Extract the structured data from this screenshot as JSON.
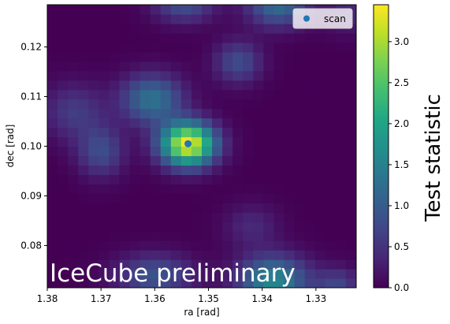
{
  "chart_data": {
    "type": "heatmap",
    "title": "",
    "xlabel": "ra [rad]",
    "ylabel": "dec [rad]",
    "xlim": [
      1.38,
      1.3225
    ],
    "ylim": [
      0.0715,
      0.1285
    ],
    "x_ticks": [
      1.38,
      1.37,
      1.36,
      1.35,
      1.34,
      1.33
    ],
    "x_tick_labels": [
      "1.38",
      "1.37",
      "1.36",
      "1.35",
      "1.34",
      "1.33"
    ],
    "y_ticks": [
      0.08,
      0.09,
      0.1,
      0.11,
      0.12
    ],
    "y_tick_labels": [
      "0.08",
      "0.09",
      "0.10",
      "0.11",
      "0.12"
    ],
    "colorbar": {
      "label": "Test statistic",
      "range": [
        0.0,
        3.45
      ],
      "ticks": [
        0.0,
        0.5,
        1.0,
        1.5,
        2.0,
        2.5,
        3.0
      ],
      "tick_labels": [
        "0.0",
        "0.5",
        "1.0",
        "1.5",
        "2.0",
        "2.5",
        "3.0"
      ],
      "colormap": "viridis"
    },
    "grid": false,
    "grid_shape": [
      30,
      30
    ],
    "hotspots": [
      {
        "ra": 1.3538,
        "dec": 0.1005,
        "sigma_ra": 0.0035,
        "sigma_dec": 0.003,
        "ts": 3.4
      },
      {
        "ra": 1.3605,
        "dec": 0.1095,
        "sigma_ra": 0.004,
        "sigma_dec": 0.0035,
        "ts": 1.3
      },
      {
        "ra": 1.37,
        "dec": 0.099,
        "sigma_ra": 0.003,
        "sigma_dec": 0.0035,
        "ts": 0.8
      },
      {
        "ra": 1.375,
        "dec": 0.107,
        "sigma_ra": 0.004,
        "sigma_dec": 0.004,
        "ts": 0.6
      },
      {
        "ra": 1.3445,
        "dec": 0.117,
        "sigma_ra": 0.003,
        "sigma_dec": 0.003,
        "ts": 0.8
      },
      {
        "ra": 1.3545,
        "dec": 0.1285,
        "sigma_ra": 0.004,
        "sigma_dec": 0.0025,
        "ts": 0.8
      },
      {
        "ra": 1.337,
        "dec": 0.1285,
        "sigma_ra": 0.004,
        "sigma_dec": 0.003,
        "ts": 1.2
      },
      {
        "ra": 1.338,
        "dec": 0.073,
        "sigma_ra": 0.0045,
        "sigma_dec": 0.0035,
        "ts": 1.6
      },
      {
        "ra": 1.36,
        "dec": 0.074,
        "sigma_ra": 0.005,
        "sigma_dec": 0.003,
        "ts": 0.9
      },
      {
        "ra": 1.326,
        "dec": 0.072,
        "sigma_ra": 0.003,
        "sigma_dec": 0.0025,
        "ts": 0.7
      },
      {
        "ra": 1.342,
        "dec": 0.084,
        "sigma_ra": 0.0035,
        "sigma_dec": 0.003,
        "ts": 0.4
      },
      {
        "ra": 1.324,
        "dec": 0.127,
        "sigma_ra": 0.003,
        "sigma_dec": 0.003,
        "ts": 0.35
      }
    ],
    "series": [
      {
        "name": "scan",
        "type": "scatter",
        "x": [
          1.3538
        ],
        "y": [
          0.1005
        ],
        "color": "#1f77b4"
      }
    ],
    "legend": {
      "location": "upper right",
      "entries": [
        "scan"
      ]
    },
    "annotation": {
      "text": "IceCube preliminary",
      "location": "lower left",
      "color": "#ffffff"
    }
  }
}
